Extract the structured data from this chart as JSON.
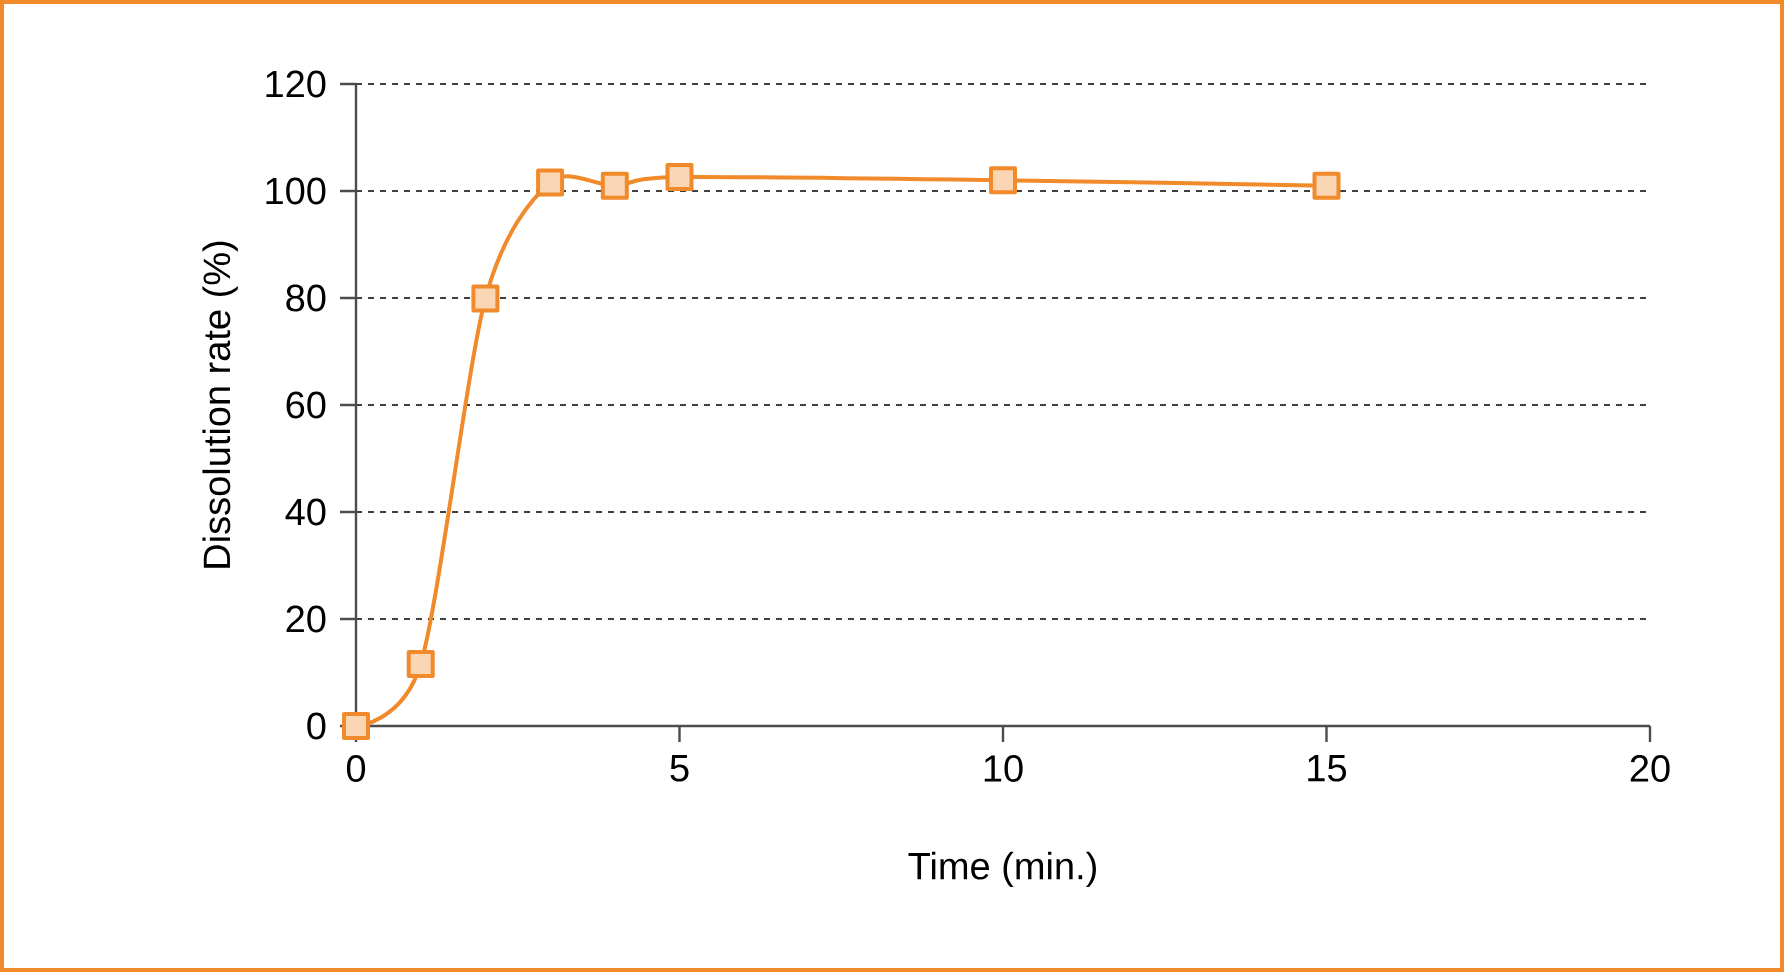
{
  "chart_data": {
    "type": "line",
    "xlabel": "Time (min.)",
    "ylabel": "Dissolution rate (%)",
    "x": [
      0,
      1,
      2,
      3,
      4,
      5,
      10,
      15
    ],
    "series": [
      {
        "color": "#f08a2a",
        "values": [
          0,
          11.6,
          79.9,
          101.6,
          101,
          102.6,
          102,
          101
        ]
      }
    ],
    "xlim": [
      0,
      20
    ],
    "xticks": [
      0,
      5,
      10,
      15,
      20
    ],
    "ylim": [
      0,
      120
    ],
    "yticks": [
      0,
      20,
      40,
      60,
      80,
      100,
      120
    ],
    "grid": "y",
    "marker": "square",
    "line_style": "solid"
  }
}
